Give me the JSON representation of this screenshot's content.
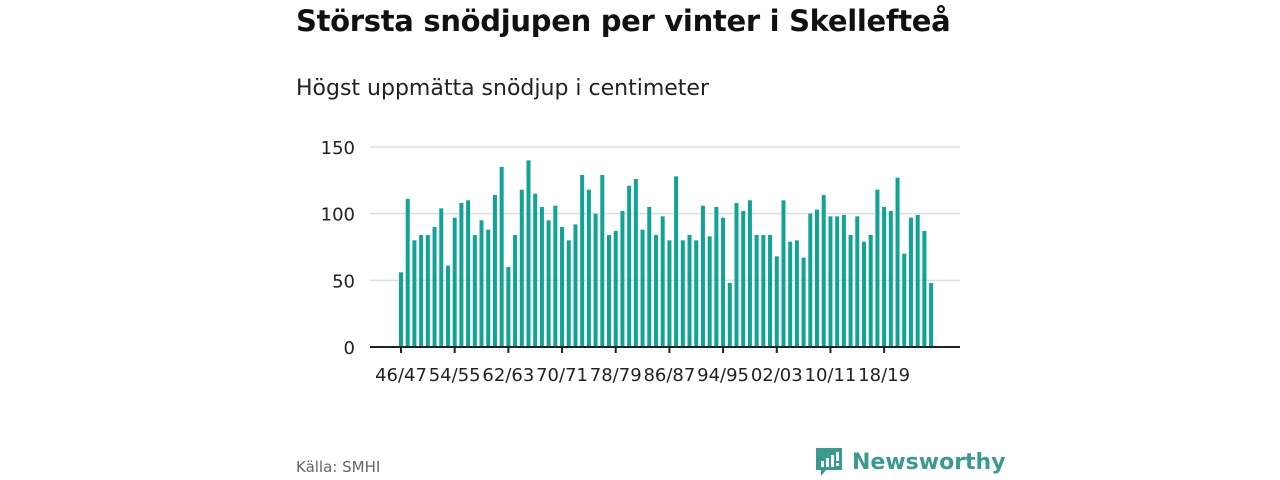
{
  "title": "Största snödjupen per vinter i Skellefteå",
  "subtitle": "Högst uppmätta snödjup i centimeter",
  "source": "Källa: SMHI",
  "brand": "Newsworthy",
  "colors": {
    "bar": "#10a396",
    "brand": "#3a9a8e",
    "grid": "#dddddd",
    "axis": "#222222"
  },
  "chart_data": {
    "type": "bar",
    "title": "Största snödjupen per vinter i Skellefteå",
    "subtitle": "Högst uppmätta snödjup i centimeter",
    "xlabel": "",
    "ylabel": "",
    "ylim": [
      0,
      150
    ],
    "yticks": [
      0,
      50,
      100,
      150
    ],
    "grid": true,
    "xtick_labels": [
      "46/47",
      "54/55",
      "62/63",
      "70/71",
      "78/79",
      "86/87",
      "94/95",
      "02/03",
      "10/11",
      "18/19"
    ],
    "xtick_every": 8,
    "categories": [
      "46/47",
      "47/48",
      "48/49",
      "49/50",
      "50/51",
      "51/52",
      "52/53",
      "53/54",
      "54/55",
      "55/56",
      "56/57",
      "57/58",
      "58/59",
      "59/60",
      "60/61",
      "61/62",
      "62/63",
      "63/64",
      "64/65",
      "65/66",
      "66/67",
      "67/68",
      "68/69",
      "69/70",
      "70/71",
      "71/72",
      "72/73",
      "73/74",
      "74/75",
      "75/76",
      "76/77",
      "77/78",
      "78/79",
      "79/80",
      "80/81",
      "81/82",
      "82/83",
      "83/84",
      "84/85",
      "85/86",
      "86/87",
      "87/88",
      "88/89",
      "89/90",
      "90/91",
      "91/92",
      "92/93",
      "93/94",
      "94/95",
      "95/96",
      "96/97",
      "97/98",
      "98/99",
      "99/00",
      "00/01",
      "01/02",
      "02/03",
      "03/04",
      "04/05",
      "05/06",
      "06/07",
      "07/08",
      "08/09",
      "09/10",
      "10/11",
      "11/12",
      "12/13",
      "13/14",
      "14/15",
      "15/16",
      "16/17",
      "17/18",
      "18/19",
      "19/20",
      "20/21",
      "21/22",
      "22/23",
      "23/24",
      "24/25",
      "25/26"
    ],
    "values": [
      56,
      111,
      80,
      84,
      84,
      90,
      104,
      61,
      97,
      108,
      110,
      84,
      95,
      88,
      114,
      135,
      60,
      84,
      118,
      140,
      115,
      105,
      95,
      106,
      90,
      80,
      92,
      129,
      118,
      100,
      129,
      84,
      87,
      102,
      121,
      126,
      88,
      105,
      84,
      98,
      80,
      128,
      80,
      84,
      80,
      106,
      83,
      105,
      97,
      48,
      108,
      102,
      110,
      84,
      84,
      84,
      68,
      110,
      79,
      80,
      67,
      100,
      103,
      114,
      98,
      98,
      99,
      84,
      98,
      79,
      84,
      118,
      105,
      102,
      127,
      70,
      97,
      99,
      87,
      48
    ]
  }
}
